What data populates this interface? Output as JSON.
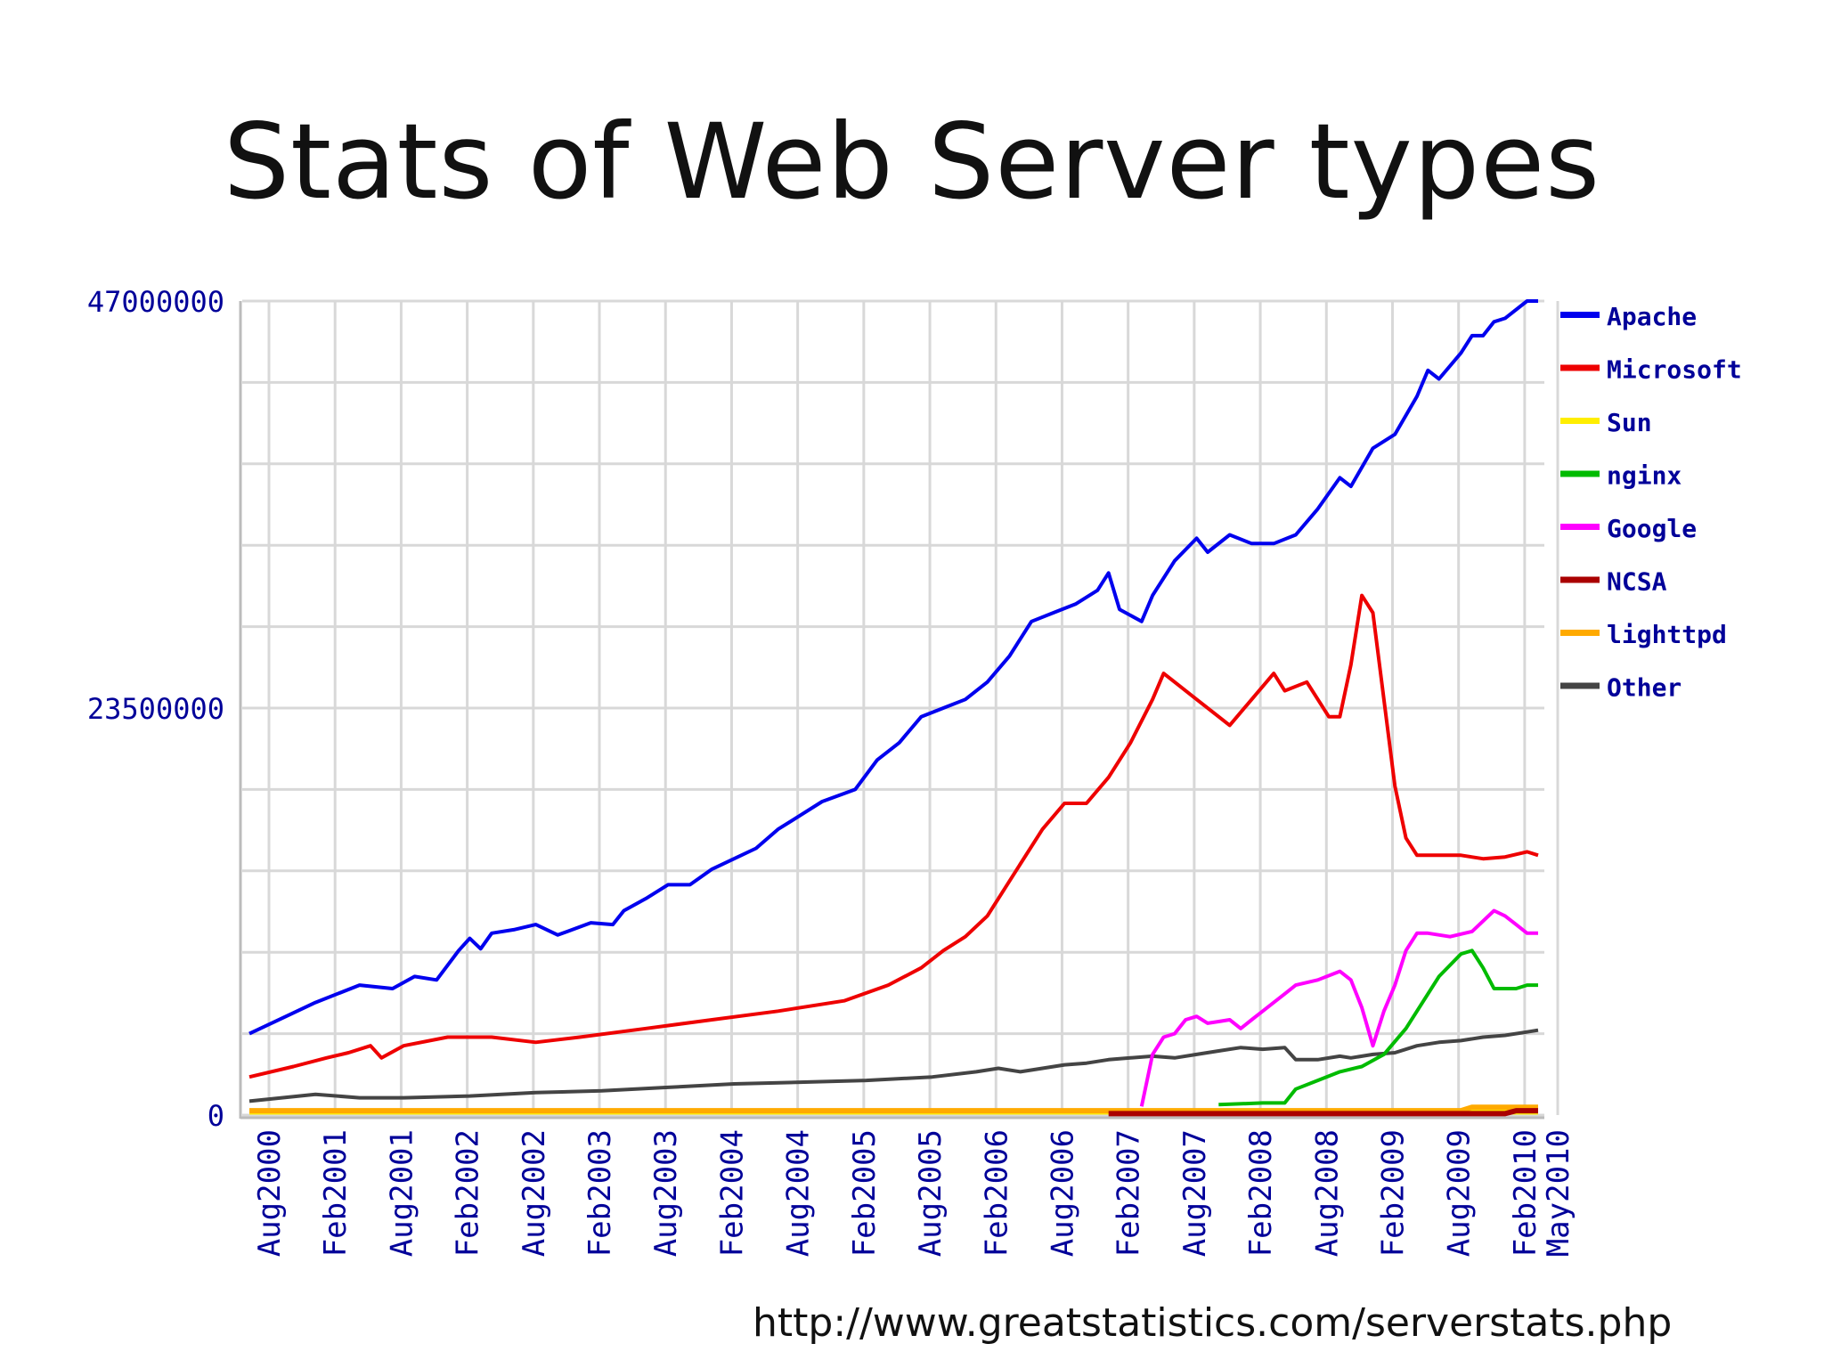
{
  "slide": {
    "title": "Stats of Web Server types",
    "source_url": "http://www.greatstatistics.com/serverstats.php"
  },
  "chart_data": {
    "type": "line",
    "title": "",
    "xlabel": "",
    "ylabel": "",
    "ylim": [
      0,
      47000000
    ],
    "y_ticks": [
      "0",
      "23500000",
      "47000000"
    ],
    "x_ticks": [
      "Aug2000",
      "Feb2001",
      "Aug2001",
      "Feb2002",
      "Aug2002",
      "Feb2003",
      "Aug2003",
      "Feb2004",
      "Aug2004",
      "Feb2005",
      "Aug2005",
      "Feb2006",
      "Aug2006",
      "Feb2007",
      "Aug2007",
      "Feb2008",
      "Aug2008",
      "Feb2009",
      "Aug2009",
      "Feb2010",
      "May2010"
    ],
    "x_tick_months": [
      0,
      6,
      12,
      18,
      24,
      30,
      36,
      42,
      48,
      54,
      60,
      66,
      72,
      78,
      84,
      90,
      96,
      102,
      108,
      114,
      117
    ],
    "x_range_months": [
      0,
      117
    ],
    "grid": true,
    "legend_position": "right",
    "series": [
      {
        "name": "Apache",
        "color": "#0000ee",
        "points": [
          [
            0,
            4700000.0
          ],
          [
            6,
            6500000.0
          ],
          [
            10,
            7500000.0
          ],
          [
            13,
            7300000.0
          ],
          [
            15,
            8000000.0
          ],
          [
            17,
            7800000.0
          ],
          [
            19,
            9500000.0
          ],
          [
            20,
            10200000.0
          ],
          [
            21,
            9600000.0
          ],
          [
            22,
            10500000.0
          ],
          [
            24,
            10700000.0
          ],
          [
            26,
            11000000.0
          ],
          [
            28,
            10400000.0
          ],
          [
            31,
            11100000.0
          ],
          [
            33,
            11000000.0
          ],
          [
            34,
            11800000.0
          ],
          [
            36,
            12500000.0
          ],
          [
            38,
            13300000.0
          ],
          [
            40,
            13300000.0
          ],
          [
            42,
            14200000.0
          ],
          [
            44,
            14800000.0
          ],
          [
            46,
            15400000.0
          ],
          [
            48,
            16500000.0
          ],
          [
            50,
            17300000.0
          ],
          [
            52,
            18100000.0
          ],
          [
            55,
            18800000.0
          ],
          [
            57,
            20500000.0
          ],
          [
            59,
            21500000.0
          ],
          [
            61,
            23000000.0
          ],
          [
            63,
            23500000.0
          ],
          [
            65,
            24000000.0
          ],
          [
            67,
            25000000.0
          ],
          [
            69,
            26500000.0
          ],
          [
            71,
            28500000.0
          ],
          [
            73,
            29000000.0
          ],
          [
            75,
            29500000.0
          ],
          [
            77,
            30300000.0
          ],
          [
            78,
            31300000.0
          ],
          [
            79,
            29200000.0
          ],
          [
            81,
            28500000.0
          ],
          [
            82,
            30000000.0
          ],
          [
            84,
            32000000.0
          ],
          [
            86,
            33300000.0
          ],
          [
            87,
            32500000.0
          ],
          [
            89,
            33500000.0
          ],
          [
            91,
            33000000.0
          ],
          [
            93,
            33000000.0
          ],
          [
            95,
            33500000.0
          ],
          [
            97,
            35000000.0
          ],
          [
            99,
            36800000.0
          ],
          [
            100,
            36300000.0
          ],
          [
            102,
            38500000.0
          ],
          [
            104,
            39300000.0
          ],
          [
            106,
            41500000.0
          ],
          [
            107,
            43000000.0
          ],
          [
            108,
            42500000.0
          ],
          [
            110,
            44000000.0
          ],
          [
            111,
            45000000.0
          ],
          [
            112,
            45000000.0
          ],
          [
            113,
            45800000.0
          ],
          [
            114,
            46000000.0
          ],
          [
            116,
            47000000.0
          ],
          [
            117,
            47000000.0
          ]
        ]
      },
      {
        "name": "Microsoft",
        "color": "#ee0000",
        "points": [
          [
            0,
            2200000.0
          ],
          [
            4,
            2800000.0
          ],
          [
            7,
            3300000.0
          ],
          [
            9,
            3600000.0
          ],
          [
            11,
            4000000.0
          ],
          [
            12,
            3300000.0
          ],
          [
            14,
            4000000.0
          ],
          [
            18,
            4500000.0
          ],
          [
            22,
            4500000.0
          ],
          [
            26,
            4200000.0
          ],
          [
            30,
            4500000.0
          ],
          [
            36,
            5000000.0
          ],
          [
            42,
            5500000.0
          ],
          [
            48,
            6000000.0
          ],
          [
            54,
            6600000.0
          ],
          [
            58,
            7500000.0
          ],
          [
            61,
            8500000.0
          ],
          [
            63,
            9500000.0
          ],
          [
            65,
            10300000.0
          ],
          [
            67,
            11500000.0
          ],
          [
            68,
            12500000.0
          ],
          [
            70,
            14500000.0
          ],
          [
            72,
            16500000.0
          ],
          [
            74,
            18000000.0
          ],
          [
            76,
            18000000.0
          ],
          [
            78,
            19500000.0
          ],
          [
            80,
            21500000.0
          ],
          [
            82,
            24000000.0
          ],
          [
            83,
            25500000.0
          ],
          [
            84,
            25000000.0
          ],
          [
            86,
            24000000.0
          ],
          [
            88,
            23000000.0
          ],
          [
            89,
            22500000.0
          ],
          [
            91,
            24000000.0
          ],
          [
            93,
            25500000.0
          ],
          [
            94,
            24500000.0
          ],
          [
            96,
            25000000.0
          ],
          [
            98,
            23000000.0
          ],
          [
            99,
            23000000.0
          ],
          [
            100,
            26000000.0
          ],
          [
            101,
            30000000.0
          ],
          [
            102,
            29000000.0
          ],
          [
            104,
            19000000.0
          ],
          [
            105,
            16000000.0
          ],
          [
            106,
            15000000.0
          ],
          [
            108,
            15000000.0
          ],
          [
            110,
            15000000.0
          ],
          [
            112,
            14800000.0
          ],
          [
            114,
            14900000.0
          ],
          [
            116,
            15200000.0
          ],
          [
            117,
            15000000.0
          ]
        ]
      },
      {
        "name": "Sun",
        "color": "#ffee00",
        "points": [
          [
            0,
            180000.0
          ],
          [
            117,
            180000.0
          ]
        ]
      },
      {
        "name": "nginx",
        "color": "#00bb00",
        "points": [
          [
            88,
            600000.0
          ],
          [
            92,
            700000.0
          ],
          [
            94,
            700000.0
          ],
          [
            95,
            1500000.0
          ],
          [
            97,
            2000000.0
          ],
          [
            99,
            2500000.0
          ],
          [
            101,
            2800000.0
          ],
          [
            103,
            3500000.0
          ],
          [
            105,
            5000000.0
          ],
          [
            106,
            6000000.0
          ],
          [
            108,
            8000000.0
          ],
          [
            110,
            9300000.0
          ],
          [
            111,
            9500000.0
          ],
          [
            112,
            8500000.0
          ],
          [
            113,
            7300000.0
          ],
          [
            114,
            7300000.0
          ],
          [
            115,
            7300000.0
          ],
          [
            116,
            7500000.0
          ],
          [
            117,
            7500000.0
          ]
        ]
      },
      {
        "name": "Google",
        "color": "#ff00ff",
        "points": [
          [
            81,
            500000.0
          ],
          [
            82,
            3500000.0
          ],
          [
            83,
            4500000.0
          ],
          [
            84,
            4700000.0
          ],
          [
            85,
            5500000.0
          ],
          [
            86,
            5700000.0
          ],
          [
            87,
            5300000.0
          ],
          [
            88,
            5400000.0
          ],
          [
            89,
            5500000.0
          ],
          [
            90,
            5000000.0
          ],
          [
            91,
            5500000.0
          ],
          [
            92,
            6000000.0
          ],
          [
            93,
            6500000.0
          ],
          [
            94,
            7000000.0
          ],
          [
            95,
            7500000.0
          ],
          [
            97,
            7800000.0
          ],
          [
            99,
            8300000.0
          ],
          [
            100,
            7800000.0
          ],
          [
            101,
            6200000.0
          ],
          [
            102,
            4000000.0
          ],
          [
            103,
            6000000.0
          ],
          [
            104,
            7500000.0
          ],
          [
            105,
            9500000.0
          ],
          [
            106,
            10500000.0
          ],
          [
            107,
            10500000.0
          ],
          [
            109,
            10300000.0
          ],
          [
            111,
            10600000.0
          ],
          [
            113,
            11800000.0
          ],
          [
            114,
            11500000.0
          ],
          [
            115,
            11000000.0
          ],
          [
            116,
            10500000.0
          ],
          [
            117,
            10500000.0
          ]
        ]
      },
      {
        "name": "NCSA",
        "color": "#aa0000",
        "points": [
          [
            78,
            80000.0
          ],
          [
            114,
            80000.0
          ],
          [
            115,
            250000.0
          ],
          [
            117,
            250000.0
          ]
        ]
      },
      {
        "name": "lighttpd",
        "color": "#ffaa00",
        "points": [
          [
            0,
            250000.0
          ],
          [
            110,
            250000.0
          ],
          [
            111,
            450000.0
          ],
          [
            117,
            450000.0
          ]
        ]
      },
      {
        "name": "Other",
        "color": "#444444",
        "points": [
          [
            0,
            800000.0
          ],
          [
            6,
            1200000.0
          ],
          [
            10,
            1000000.0
          ],
          [
            14,
            1000000.0
          ],
          [
            20,
            1100000.0
          ],
          [
            26,
            1300000.0
          ],
          [
            32,
            1400000.0
          ],
          [
            38,
            1600000.0
          ],
          [
            44,
            1800000.0
          ],
          [
            50,
            1900000.0
          ],
          [
            56,
            2000000.0
          ],
          [
            62,
            2200000.0
          ],
          [
            66,
            2500000.0
          ],
          [
            68,
            2700000.0
          ],
          [
            70,
            2500000.0
          ],
          [
            72,
            2700000.0
          ],
          [
            74,
            2900000.0
          ],
          [
            76,
            3000000.0
          ],
          [
            78,
            3200000.0
          ],
          [
            80,
            3300000.0
          ],
          [
            82,
            3400000.0
          ],
          [
            84,
            3300000.0
          ],
          [
            86,
            3500000.0
          ],
          [
            88,
            3700000.0
          ],
          [
            90,
            3900000.0
          ],
          [
            92,
            3800000.0
          ],
          [
            94,
            3900000.0
          ],
          [
            95,
            3200000.0
          ],
          [
            97,
            3200000.0
          ],
          [
            99,
            3400000.0
          ],
          [
            100,
            3300000.0
          ],
          [
            102,
            3500000.0
          ],
          [
            104,
            3600000.0
          ],
          [
            106,
            4000000.0
          ],
          [
            108,
            4200000.0
          ],
          [
            110,
            4300000.0
          ],
          [
            112,
            4500000.0
          ],
          [
            114,
            4600000.0
          ],
          [
            116,
            4800000.0
          ],
          [
            117,
            4900000.0
          ]
        ]
      }
    ]
  }
}
